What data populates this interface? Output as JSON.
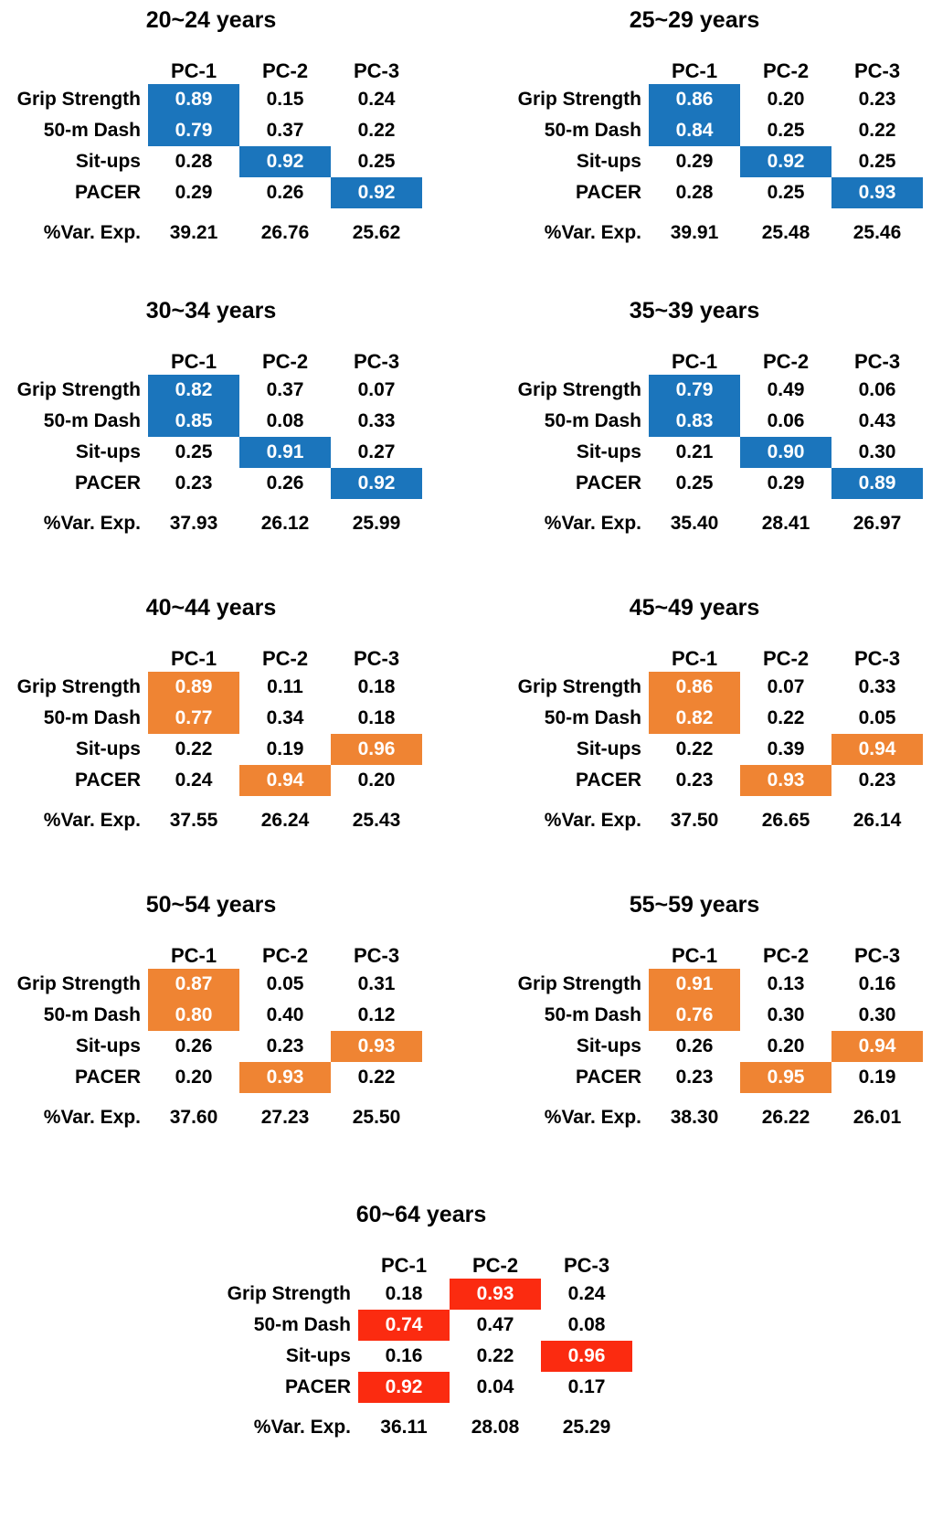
{
  "col_headers": [
    "PC-1",
    "PC-2",
    "PC-3"
  ],
  "row_labels": [
    "Grip Strength",
    "50-m Dash",
    "Sit-ups",
    "PACER"
  ],
  "var_label": "%Var. Exp.",
  "colors": {
    "blue": "#1B75BC",
    "orange": "#EF8433",
    "red": "#FB2B10"
  },
  "tables": [
    {
      "title": "20~24 years",
      "color": "blue",
      "rows": [
        {
          "values": [
            "0.89",
            "0.15",
            "0.24"
          ],
          "highlight": 0
        },
        {
          "values": [
            "0.79",
            "0.37",
            "0.22"
          ],
          "highlight": 0
        },
        {
          "values": [
            "0.28",
            "0.92",
            "0.25"
          ],
          "highlight": 1
        },
        {
          "values": [
            "0.29",
            "0.26",
            "0.92"
          ],
          "highlight": 2
        }
      ],
      "var_exp": [
        "39.21",
        "26.76",
        "25.62"
      ]
    },
    {
      "title": "25~29 years",
      "color": "blue",
      "rows": [
        {
          "values": [
            "0.86",
            "0.20",
            "0.23"
          ],
          "highlight": 0
        },
        {
          "values": [
            "0.84",
            "0.25",
            "0.22"
          ],
          "highlight": 0
        },
        {
          "values": [
            "0.29",
            "0.92",
            "0.25"
          ],
          "highlight": 1
        },
        {
          "values": [
            "0.28",
            "0.25",
            "0.93"
          ],
          "highlight": 2
        }
      ],
      "var_exp": [
        "39.91",
        "25.48",
        "25.46"
      ]
    },
    {
      "title": "30~34 years",
      "color": "blue",
      "rows": [
        {
          "values": [
            "0.82",
            "0.37",
            "0.07"
          ],
          "highlight": 0
        },
        {
          "values": [
            "0.85",
            "0.08",
            "0.33"
          ],
          "highlight": 0
        },
        {
          "values": [
            "0.25",
            "0.91",
            "0.27"
          ],
          "highlight": 1
        },
        {
          "values": [
            "0.23",
            "0.26",
            "0.92"
          ],
          "highlight": 2
        }
      ],
      "var_exp": [
        "37.93",
        "26.12",
        "25.99"
      ]
    },
    {
      "title": "35~39 years",
      "color": "blue",
      "rows": [
        {
          "values": [
            "0.79",
            "0.49",
            "0.06"
          ],
          "highlight": 0
        },
        {
          "values": [
            "0.83",
            "0.06",
            "0.43"
          ],
          "highlight": 0
        },
        {
          "values": [
            "0.21",
            "0.90",
            "0.30"
          ],
          "highlight": 1
        },
        {
          "values": [
            "0.25",
            "0.29",
            "0.89"
          ],
          "highlight": 2
        }
      ],
      "var_exp": [
        "35.40",
        "28.41",
        "26.97"
      ]
    },
    {
      "title": "40~44 years",
      "color": "orange",
      "rows": [
        {
          "values": [
            "0.89",
            "0.11",
            "0.18"
          ],
          "highlight": 0
        },
        {
          "values": [
            "0.77",
            "0.34",
            "0.18"
          ],
          "highlight": 0
        },
        {
          "values": [
            "0.22",
            "0.19",
            "0.96"
          ],
          "highlight": 2
        },
        {
          "values": [
            "0.24",
            "0.94",
            "0.20"
          ],
          "highlight": 1
        }
      ],
      "var_exp": [
        "37.55",
        "26.24",
        "25.43"
      ]
    },
    {
      "title": "45~49 years",
      "color": "orange",
      "rows": [
        {
          "values": [
            "0.86",
            "0.07",
            "0.33"
          ],
          "highlight": 0
        },
        {
          "values": [
            "0.82",
            "0.22",
            "0.05"
          ],
          "highlight": 0
        },
        {
          "values": [
            "0.22",
            "0.39",
            "0.94"
          ],
          "highlight": 2
        },
        {
          "values": [
            "0.23",
            "0.93",
            "0.23"
          ],
          "highlight": 1
        }
      ],
      "var_exp": [
        "37.50",
        "26.65",
        "26.14"
      ]
    },
    {
      "title": "50~54 years",
      "color": "orange",
      "rows": [
        {
          "values": [
            "0.87",
            "0.05",
            "0.31"
          ],
          "highlight": 0
        },
        {
          "values": [
            "0.80",
            "0.40",
            "0.12"
          ],
          "highlight": 0
        },
        {
          "values": [
            "0.26",
            "0.23",
            "0.93"
          ],
          "highlight": 2
        },
        {
          "values": [
            "0.20",
            "0.93",
            "0.22"
          ],
          "highlight": 1
        }
      ],
      "var_exp": [
        "37.60",
        "27.23",
        "25.50"
      ]
    },
    {
      "title": "55~59 years",
      "color": "orange",
      "rows": [
        {
          "values": [
            "0.91",
            "0.13",
            "0.16"
          ],
          "highlight": 0
        },
        {
          "values": [
            "0.76",
            "0.30",
            "0.30"
          ],
          "highlight": 0
        },
        {
          "values": [
            "0.26",
            "0.20",
            "0.94"
          ],
          "highlight": 2
        },
        {
          "values": [
            "0.23",
            "0.95",
            "0.19"
          ],
          "highlight": 1
        }
      ],
      "var_exp": [
        "38.30",
        "26.22",
        "26.01"
      ]
    },
    {
      "title": "60~64 years",
      "color": "red",
      "rows": [
        {
          "values": [
            "0.18",
            "0.93",
            "0.24"
          ],
          "highlight": 1
        },
        {
          "values": [
            "0.74",
            "0.47",
            "0.08"
          ],
          "highlight": 0
        },
        {
          "values": [
            "0.16",
            "0.22",
            "0.96"
          ],
          "highlight": 2
        },
        {
          "values": [
            "0.92",
            "0.04",
            "0.17"
          ],
          "highlight": 0
        }
      ],
      "var_exp": [
        "36.11",
        "28.08",
        "25.29"
      ]
    }
  ],
  "chart_data": [
    {
      "type": "table",
      "title": "20~24 years",
      "columns": [
        "PC-1",
        "PC-2",
        "PC-3"
      ],
      "rows": {
        "Grip Strength": [
          0.89,
          0.15,
          0.24
        ],
        "50-m Dash": [
          0.79,
          0.37,
          0.22
        ],
        "Sit-ups": [
          0.28,
          0.92,
          0.25
        ],
        "PACER": [
          0.29,
          0.26,
          0.92
        ],
        "%Var. Exp.": [
          39.21,
          26.76,
          25.62
        ]
      },
      "highlighted": {
        "Grip Strength": "PC-1",
        "50-m Dash": "PC-1",
        "Sit-ups": "PC-2",
        "PACER": "PC-3"
      },
      "highlight_color": "#1B75BC"
    },
    {
      "type": "table",
      "title": "25~29 years",
      "columns": [
        "PC-1",
        "PC-2",
        "PC-3"
      ],
      "rows": {
        "Grip Strength": [
          0.86,
          0.2,
          0.23
        ],
        "50-m Dash": [
          0.84,
          0.25,
          0.22
        ],
        "Sit-ups": [
          0.29,
          0.92,
          0.25
        ],
        "PACER": [
          0.28,
          0.25,
          0.93
        ],
        "%Var. Exp.": [
          39.91,
          25.48,
          25.46
        ]
      },
      "highlighted": {
        "Grip Strength": "PC-1",
        "50-m Dash": "PC-1",
        "Sit-ups": "PC-2",
        "PACER": "PC-3"
      },
      "highlight_color": "#1B75BC"
    },
    {
      "type": "table",
      "title": "30~34 years",
      "columns": [
        "PC-1",
        "PC-2",
        "PC-3"
      ],
      "rows": {
        "Grip Strength": [
          0.82,
          0.37,
          0.07
        ],
        "50-m Dash": [
          0.85,
          0.08,
          0.33
        ],
        "Sit-ups": [
          0.25,
          0.91,
          0.27
        ],
        "PACER": [
          0.23,
          0.26,
          0.92
        ],
        "%Var. Exp.": [
          37.93,
          26.12,
          25.99
        ]
      },
      "highlighted": {
        "Grip Strength": "PC-1",
        "50-m Dash": "PC-1",
        "Sit-ups": "PC-2",
        "PACER": "PC-3"
      },
      "highlight_color": "#1B75BC"
    },
    {
      "type": "table",
      "title": "35~39 years",
      "columns": [
        "PC-1",
        "PC-2",
        "PC-3"
      ],
      "rows": {
        "Grip Strength": [
          0.79,
          0.49,
          0.06
        ],
        "50-m Dash": [
          0.83,
          0.06,
          0.43
        ],
        "Sit-ups": [
          0.21,
          0.9,
          0.3
        ],
        "PACER": [
          0.25,
          0.29,
          0.89
        ],
        "%Var. Exp.": [
          35.4,
          28.41,
          26.97
        ]
      },
      "highlighted": {
        "Grip Strength": "PC-1",
        "50-m Dash": "PC-1",
        "Sit-ups": "PC-2",
        "PACER": "PC-3"
      },
      "highlight_color": "#1B75BC"
    },
    {
      "type": "table",
      "title": "40~44 years",
      "columns": [
        "PC-1",
        "PC-2",
        "PC-3"
      ],
      "rows": {
        "Grip Strength": [
          0.89,
          0.11,
          0.18
        ],
        "50-m Dash": [
          0.77,
          0.34,
          0.18
        ],
        "Sit-ups": [
          0.22,
          0.19,
          0.96
        ],
        "PACER": [
          0.24,
          0.94,
          0.2
        ],
        "%Var. Exp.": [
          37.55,
          26.24,
          25.43
        ]
      },
      "highlighted": {
        "Grip Strength": "PC-1",
        "50-m Dash": "PC-1",
        "Sit-ups": "PC-3",
        "PACER": "PC-2"
      },
      "highlight_color": "#EF8433"
    },
    {
      "type": "table",
      "title": "45~49 years",
      "columns": [
        "PC-1",
        "PC-2",
        "PC-3"
      ],
      "rows": {
        "Grip Strength": [
          0.86,
          0.07,
          0.33
        ],
        "50-m Dash": [
          0.82,
          0.22,
          0.05
        ],
        "Sit-ups": [
          0.22,
          0.39,
          0.94
        ],
        "PACER": [
          0.23,
          0.93,
          0.23
        ],
        "%Var. Exp.": [
          37.5,
          26.65,
          26.14
        ]
      },
      "highlighted": {
        "Grip Strength": "PC-1",
        "50-m Dash": "PC-1",
        "Sit-ups": "PC-3",
        "PACER": "PC-2"
      },
      "highlight_color": "#EF8433"
    },
    {
      "type": "table",
      "title": "50~54 years",
      "columns": [
        "PC-1",
        "PC-2",
        "PC-3"
      ],
      "rows": {
        "Grip Strength": [
          0.87,
          0.05,
          0.31
        ],
        "50-m Dash": [
          0.8,
          0.4,
          0.12
        ],
        "Sit-ups": [
          0.26,
          0.23,
          0.93
        ],
        "PACER": [
          0.2,
          0.93,
          0.22
        ],
        "%Var. Exp.": [
          37.6,
          27.23,
          25.5
        ]
      },
      "highlighted": {
        "Grip Strength": "PC-1",
        "50-m Dash": "PC-1",
        "Sit-ups": "PC-3",
        "PACER": "PC-2"
      },
      "highlight_color": "#EF8433"
    },
    {
      "type": "table",
      "title": "55~59 years",
      "columns": [
        "PC-1",
        "PC-2",
        "PC-3"
      ],
      "rows": {
        "Grip Strength": [
          0.91,
          0.13,
          0.16
        ],
        "50-m Dash": [
          0.76,
          0.3,
          0.3
        ],
        "Sit-ups": [
          0.26,
          0.2,
          0.94
        ],
        "PACER": [
          0.23,
          0.95,
          0.19
        ],
        "%Var. Exp.": [
          38.3,
          26.22,
          26.01
        ]
      },
      "highlighted": {
        "Grip Strength": "PC-1",
        "50-m Dash": "PC-1",
        "Sit-ups": "PC-3",
        "PACER": "PC-2"
      },
      "highlight_color": "#EF8433"
    },
    {
      "type": "table",
      "title": "60~64 years",
      "columns": [
        "PC-1",
        "PC-2",
        "PC-3"
      ],
      "rows": {
        "Grip Strength": [
          0.18,
          0.93,
          0.24
        ],
        "50-m Dash": [
          0.74,
          0.47,
          0.08
        ],
        "Sit-ups": [
          0.16,
          0.22,
          0.96
        ],
        "PACER": [
          0.92,
          0.04,
          0.17
        ],
        "%Var. Exp.": [
          36.11,
          28.08,
          25.29
        ]
      },
      "highlighted": {
        "Grip Strength": "PC-2",
        "50-m Dash": "PC-1",
        "Sit-ups": "PC-3",
        "PACER": "PC-1"
      },
      "highlight_color": "#FB2B10"
    }
  ]
}
